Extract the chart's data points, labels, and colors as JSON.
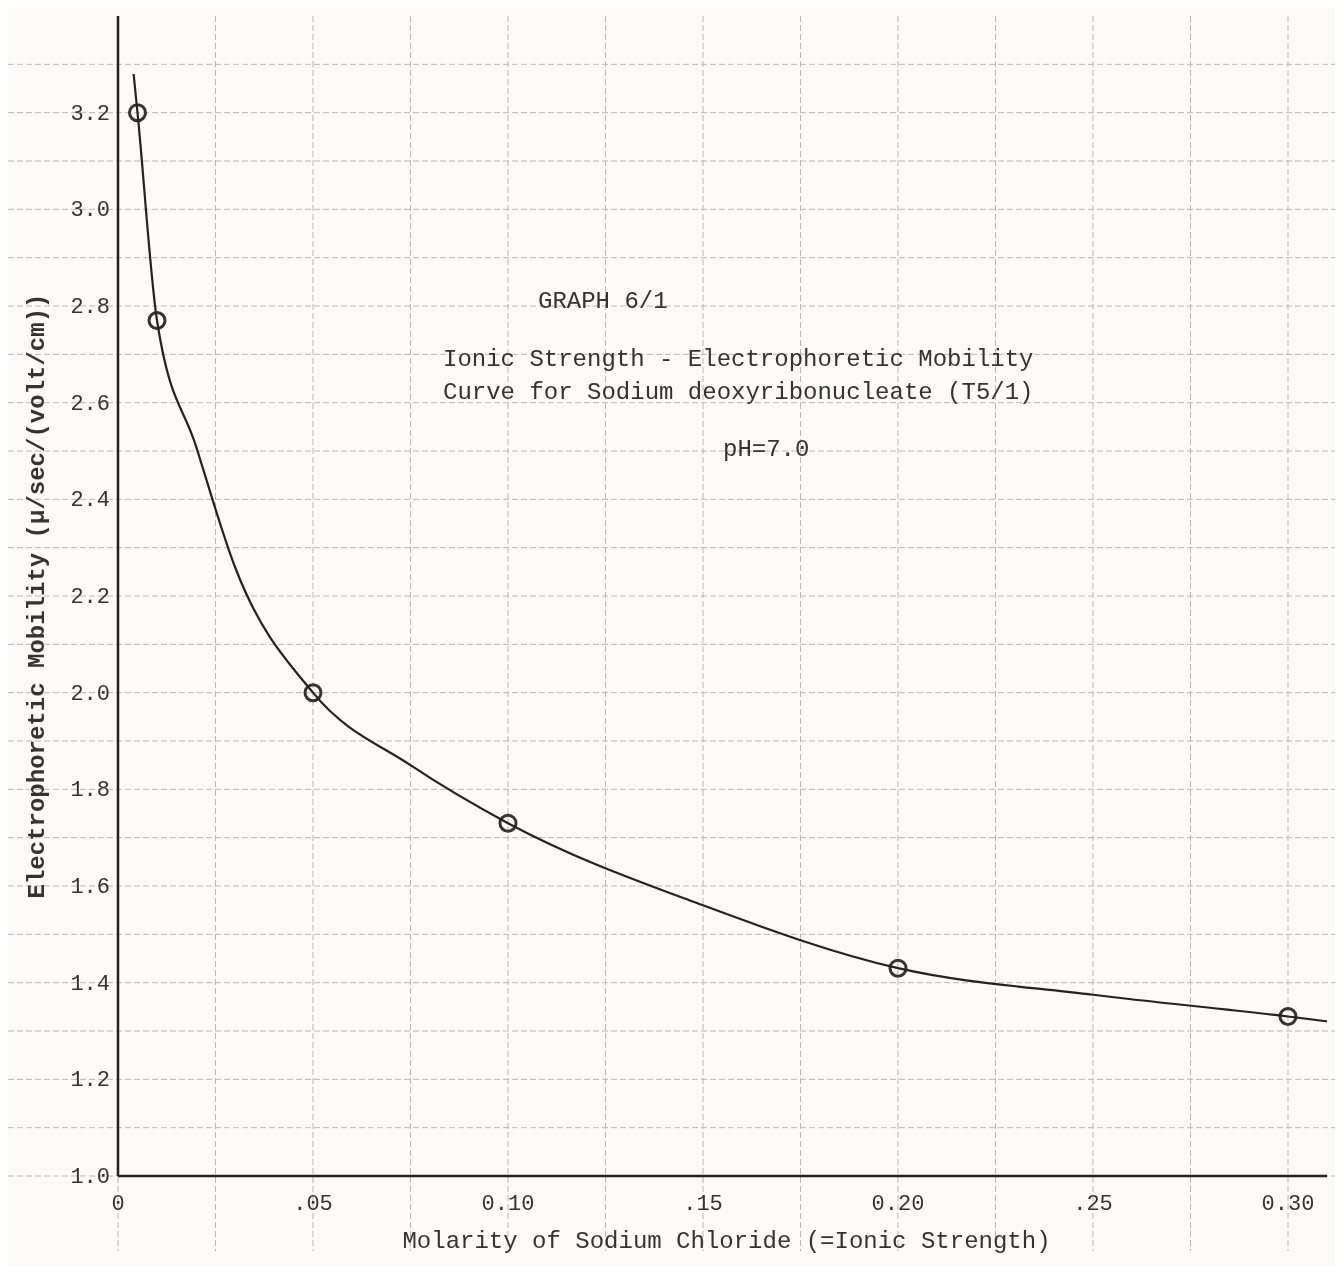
{
  "chart_data": {
    "type": "scatter",
    "title": "GRAPH 6/1",
    "subtitle": "Ionic Strength - Electrophoretic Mobility\nCurve for Sodium deoxyribonucleate (T5/1)",
    "annotations": [
      "pH=7.0"
    ],
    "xlabel": "Molarity of Sodium Chloride (=Ionic Strength)",
    "ylabel": "Electrophoretic Mobility (μ/sec/(volt/cm))",
    "series": [
      {
        "marker": "circle",
        "color": "#333333",
        "x": [
          0.005,
          0.01,
          0.05,
          0.1,
          0.2,
          0.3
        ],
        "values": [
          3.2,
          2.77,
          2.0,
          1.73,
          1.43,
          1.33
        ]
      },
      {
        "type": "line",
        "color": "#222222",
        "x": [
          0.004,
          0.005,
          0.01,
          0.02,
          0.03,
          0.05,
          0.075,
          0.1,
          0.15,
          0.2,
          0.25,
          0.3,
          0.31
        ],
        "values": [
          3.28,
          3.2,
          2.77,
          2.51,
          2.26,
          2.0,
          1.85,
          1.73,
          1.56,
          1.43,
          1.375,
          1.33,
          1.32
        ]
      }
    ],
    "xlim": [
      0,
      0.31
    ],
    "ylim": [
      1.0,
      3.4
    ],
    "xticks": [
      {
        "value": 0,
        "label": "0"
      },
      {
        "value": 0.025,
        "label": null
      },
      {
        "value": 0.05,
        "label": ".05"
      },
      {
        "value": 0.075,
        "label": null
      },
      {
        "value": 0.1,
        "label": "0.10"
      },
      {
        "value": 0.125,
        "label": null
      },
      {
        "value": 0.15,
        "label": ".15"
      },
      {
        "value": 0.175,
        "label": null
      },
      {
        "value": 0.2,
        "label": "0.20"
      },
      {
        "value": 0.225,
        "label": null
      },
      {
        "value": 0.25,
        "label": ".25"
      },
      {
        "value": 0.275,
        "label": null
      },
      {
        "value": 0.3,
        "label": "0.30"
      }
    ],
    "yticks": [
      {
        "value": 1.0,
        "label": "1.0"
      },
      {
        "value": 1.1,
        "label": null
      },
      {
        "value": 1.2,
        "label": "1.2"
      },
      {
        "value": 1.3,
        "label": null
      },
      {
        "value": 1.4,
        "label": "1.4"
      },
      {
        "value": 1.5,
        "label": null
      },
      {
        "value": 1.6,
        "label": "1.6"
      },
      {
        "value": 1.7,
        "label": null
      },
      {
        "value": 1.8,
        "label": "1.8"
      },
      {
        "value": 1.9,
        "label": null
      },
      {
        "value": 2.0,
        "label": "2.0"
      },
      {
        "value": 2.1,
        "label": null
      },
      {
        "value": 2.2,
        "label": "2.2"
      },
      {
        "value": 2.3,
        "label": null
      },
      {
        "value": 2.4,
        "label": "2.4"
      },
      {
        "value": 2.5,
        "label": null
      },
      {
        "value": 2.6,
        "label": "2.6"
      },
      {
        "value": 2.7,
        "label": null
      },
      {
        "value": 2.8,
        "label": "2.8"
      },
      {
        "value": 2.9,
        "label": null
      },
      {
        "value": 3.0,
        "label": "3.0"
      },
      {
        "value": 3.1,
        "label": null
      },
      {
        "value": 3.2,
        "label": "3.2"
      },
      {
        "value": 3.3,
        "label": null
      }
    ],
    "grid": true
  }
}
